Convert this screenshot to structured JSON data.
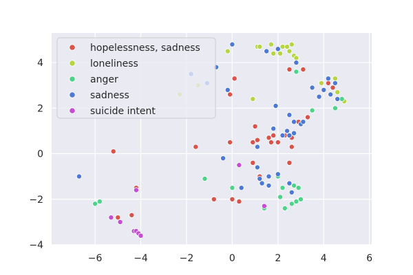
{
  "chart_data": {
    "type": "scatter",
    "title": "",
    "xlabel": "",
    "ylabel": "",
    "xlim": [
      -7.9,
      6.1
    ],
    "ylim": [
      -4,
      5.3
    ],
    "xticks": [
      -6,
      -4,
      -2,
      0,
      2,
      4,
      6
    ],
    "yticks": [
      -4,
      -2,
      0,
      2,
      4
    ],
    "xtick_labels": [
      "−6",
      "−4",
      "−2",
      "0",
      "2",
      "4",
      "6"
    ],
    "ytick_labels": [
      "−4",
      "−2",
      "0",
      "2",
      "4"
    ],
    "grid": true,
    "legend_position": "top-left",
    "series": [
      {
        "name": "hopelessness, sadness",
        "color": "#d9534a",
        "points": [
          [
            -5.2,
            0.1
          ],
          [
            -5.0,
            -2.8
          ],
          [
            -4.4,
            -2.7
          ],
          [
            -4.2,
            -1.5
          ],
          [
            -1.6,
            0.3
          ],
          [
            -0.8,
            -2.0
          ],
          [
            -0.1,
            0.5
          ],
          [
            -0.1,
            2.6
          ],
          [
            0.0,
            -2.0
          ],
          [
            0.1,
            3.3
          ],
          [
            0.3,
            -2.1
          ],
          [
            0.9,
            -0.4
          ],
          [
            0.9,
            0.5
          ],
          [
            1.0,
            1.2
          ],
          [
            1.1,
            0.6
          ],
          [
            1.2,
            -1.0
          ],
          [
            1.6,
            0.7
          ],
          [
            1.7,
            0.5
          ],
          [
            1.8,
            0.8
          ],
          [
            2.0,
            0.5
          ],
          [
            2.3,
            0.8
          ],
          [
            2.5,
            -0.4
          ],
          [
            2.5,
            3.7
          ],
          [
            2.6,
            0.7
          ],
          [
            2.6,
            0.3
          ],
          [
            2.9,
            1.4
          ],
          [
            3.1,
            3.7
          ],
          [
            3.3,
            1.6
          ],
          [
            4.2,
            3.1
          ],
          [
            4.4,
            2.9
          ]
        ]
      },
      {
        "name": "loneliness",
        "color": "#b6d444",
        "points": [
          [
            -2.3,
            2.6
          ],
          [
            -1.5,
            3.0
          ],
          [
            -0.2,
            4.5
          ],
          [
            0.9,
            2.4
          ],
          [
            1.1,
            4.7
          ],
          [
            1.2,
            4.7
          ],
          [
            1.7,
            4.8
          ],
          [
            1.8,
            4.4
          ],
          [
            2.1,
            4.4
          ],
          [
            2.2,
            4.7
          ],
          [
            2.4,
            4.7
          ],
          [
            2.5,
            4.5
          ],
          [
            2.6,
            4.8
          ],
          [
            2.7,
            4.3
          ],
          [
            2.8,
            4.2
          ],
          [
            3.9,
            3.1
          ],
          [
            4.5,
            3.3
          ],
          [
            4.6,
            2.7
          ],
          [
            4.9,
            2.3
          ]
        ]
      },
      {
        "name": "anger",
        "color": "#4ed48a",
        "points": [
          [
            -6.0,
            -2.2
          ],
          [
            -5.8,
            -2.1
          ],
          [
            -1.2,
            -1.1
          ],
          [
            0.0,
            -1.5
          ],
          [
            1.4,
            -2.4
          ],
          [
            2.0,
            -1.0
          ],
          [
            2.1,
            -1.9
          ],
          [
            2.2,
            -1.5
          ],
          [
            2.3,
            -2.4
          ],
          [
            2.6,
            -2.2
          ],
          [
            2.7,
            -1.4
          ],
          [
            2.8,
            -2.1
          ],
          [
            2.9,
            -1.5
          ],
          [
            3.0,
            -2.0
          ],
          [
            2.8,
            3.6
          ],
          [
            3.5,
            1.9
          ],
          [
            4.5,
            2.0
          ],
          [
            4.8,
            2.4
          ]
        ]
      },
      {
        "name": "sadness",
        "color": "#4d79d4",
        "points": [
          [
            -6.7,
            -1.0
          ],
          [
            -1.8,
            3.5
          ],
          [
            -1.1,
            3.1
          ],
          [
            -0.7,
            3.8
          ],
          [
            -0.4,
            -0.2
          ],
          [
            -0.2,
            2.8
          ],
          [
            0.0,
            4.8
          ],
          [
            0.4,
            -1.5
          ],
          [
            1.1,
            0.3
          ],
          [
            1.1,
            -0.6
          ],
          [
            1.2,
            -1.1
          ],
          [
            1.3,
            -1.3
          ],
          [
            1.6,
            -1.0
          ],
          [
            1.6,
            -1.4
          ],
          [
            1.5,
            4.5
          ],
          [
            1.8,
            1.1
          ],
          [
            1.9,
            2.1
          ],
          [
            2.0,
            -0.9
          ],
          [
            2.0,
            4.6
          ],
          [
            2.2,
            0.8
          ],
          [
            2.4,
            1.0
          ],
          [
            2.5,
            -1.3
          ],
          [
            2.5,
            0.8
          ],
          [
            2.5,
            1.7
          ],
          [
            2.6,
            -1.7
          ],
          [
            2.7,
            0.9
          ],
          [
            2.7,
            1.4
          ],
          [
            2.8,
            4.0
          ],
          [
            3.0,
            1.3
          ],
          [
            3.1,
            1.4
          ],
          [
            3.5,
            2.9
          ],
          [
            3.8,
            2.5
          ],
          [
            4.0,
            2.8
          ],
          [
            4.2,
            3.3
          ],
          [
            4.3,
            2.6
          ],
          [
            4.5,
            3.1
          ],
          [
            4.6,
            2.4
          ]
        ]
      },
      {
        "name": "suicide intent",
        "color": "#c44dd4",
        "points": [
          [
            -5.3,
            -2.8
          ],
          [
            -4.9,
            -3.0
          ],
          [
            -4.3,
            -3.4
          ],
          [
            -4.2,
            -3.4
          ],
          [
            -4.1,
            -3.5
          ],
          [
            -4.0,
            -3.6
          ],
          [
            -4.2,
            -1.6
          ],
          [
            0.3,
            -0.5
          ],
          [
            1.4,
            -2.3
          ]
        ]
      }
    ]
  }
}
